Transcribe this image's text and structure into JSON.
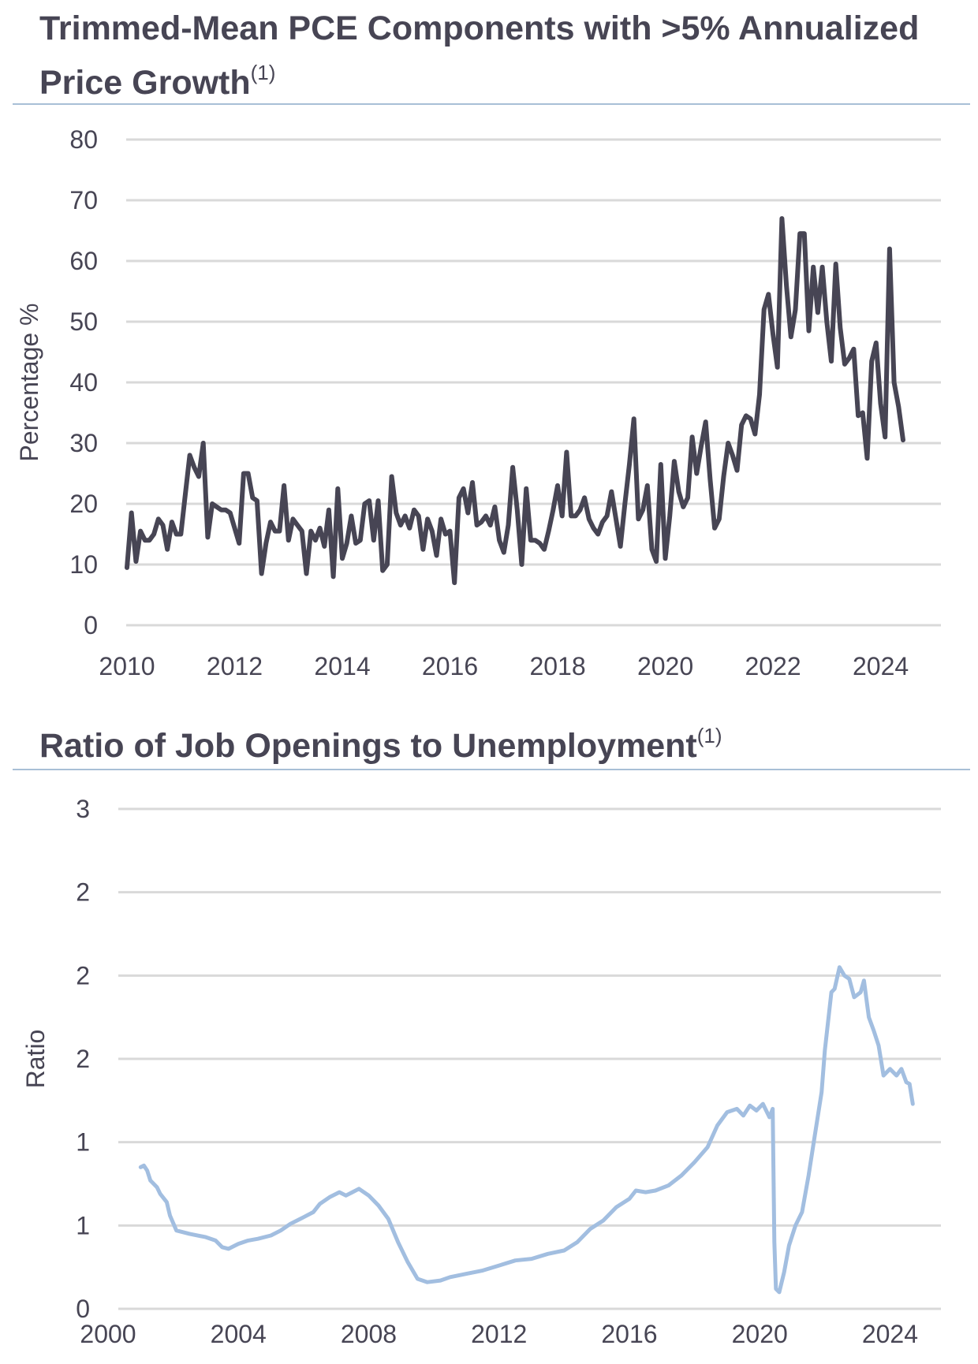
{
  "charts": [
    {
      "title": "Trimmed-Mean PCE Components with >5% Annualized Price Growth",
      "title_note": "(1)"
    },
    {
      "title": "Ratio of Job Openings to Unemployment",
      "title_note": "(1)"
    }
  ],
  "chart_data": [
    {
      "type": "line",
      "ylabel": "Percentage %",
      "ylim": [
        0,
        80
      ],
      "xlim": [
        2010,
        2024.9
      ],
      "y_ticks": [
        0,
        10,
        20,
        30,
        40,
        50,
        60,
        70,
        80
      ],
      "x_ticks": [
        2010,
        2012,
        2014,
        2016,
        2018,
        2020,
        2022,
        2024
      ],
      "grid": true,
      "line_color": "#474554",
      "series": [
        {
          "start": 2010.0,
          "step_years": 0.08333,
          "values": [
            9.5,
            18.5,
            10.5,
            15.5,
            14.0,
            14.0,
            15.0,
            17.5,
            16.5,
            12.5,
            17.0,
            15.0,
            15.0,
            21.5,
            28.0,
            26.0,
            24.5,
            30.0,
            14.5,
            20.0,
            19.5,
            19.0,
            19.0,
            18.5,
            16.0,
            13.5,
            25.0,
            25.0,
            21.0,
            20.5,
            8.5,
            13.5,
            17.0,
            15.5,
            15.5,
            23.0,
            14.0,
            17.5,
            16.5,
            15.5,
            8.5,
            15.5,
            14.0,
            16.0,
            13.0,
            19.0,
            8.0,
            22.5,
            11.0,
            13.5,
            18.0,
            13.5,
            14.0,
            20.0,
            20.5,
            14.0,
            20.5,
            9.0,
            10.0,
            24.5,
            18.5,
            16.5,
            18.0,
            16.0,
            19.0,
            18.0,
            12.5,
            17.5,
            15.5,
            11.5,
            17.5,
            15.0,
            15.5,
            7.0,
            21.0,
            22.5,
            18.5,
            23.5,
            16.5,
            17.0,
            18.0,
            16.5,
            19.5,
            14.0,
            12.0,
            16.5,
            26.0,
            19.0,
            10.0,
            22.5,
            14.0,
            14.0,
            13.5,
            12.5,
            15.5,
            19.0,
            23.0,
            18.0,
            28.5,
            18.0,
            18.0,
            19.0,
            21.0,
            17.5,
            16.0,
            15.0,
            17.0,
            18.0,
            22.0,
            17.5,
            13.0,
            20.0,
            26.5,
            34.0,
            17.5,
            19.0,
            23.0,
            12.5,
            10.5,
            26.5,
            11.0,
            18.0,
            27.0,
            22.0,
            19.5,
            21.0,
            31.0,
            25.0,
            29.5,
            33.5,
            24.0,
            16.0,
            17.5,
            24.5,
            30.0,
            28.0,
            25.5,
            33.0,
            34.5,
            34.0,
            31.5,
            38.0,
            52.0,
            54.5,
            48.0,
            42.5,
            67.0,
            56.0,
            47.5,
            52.0,
            64.5,
            64.5,
            48.5,
            59.0,
            51.5,
            59.0,
            50.0,
            43.5,
            59.5,
            49.0,
            43.0,
            44.0,
            45.5,
            34.5,
            35.0,
            27.5,
            43.5,
            46.5,
            36.5,
            31.0,
            62.0,
            40.0,
            36.0,
            30.5
          ]
        }
      ]
    },
    {
      "type": "line",
      "ylabel": "Ratio",
      "ylim": [
        0,
        3
      ],
      "xlim": [
        2000,
        2025.2
      ],
      "y_ticks": [
        0,
        0.5,
        1,
        1.5,
        2,
        2.5,
        3
      ],
      "y_tick_labels": [
        "0",
        "1",
        "1",
        "2",
        "2",
        "2",
        "3"
      ],
      "x_ticks": [
        2000,
        2004,
        2008,
        2012,
        2016,
        2020,
        2024
      ],
      "grid": true,
      "line_color": "#a2bee0",
      "series": [
        {
          "points": [
            [
              2001.0,
              0.85
            ],
            [
              2001.1,
              0.86
            ],
            [
              2001.2,
              0.83
            ],
            [
              2001.3,
              0.77
            ],
            [
              2001.5,
              0.73
            ],
            [
              2001.6,
              0.69
            ],
            [
              2001.8,
              0.64
            ],
            [
              2001.9,
              0.56
            ],
            [
              2002.1,
              0.47
            ],
            [
              2002.5,
              0.45
            ],
            [
              2003.0,
              0.43
            ],
            [
              2003.3,
              0.41
            ],
            [
              2003.5,
              0.37
            ],
            [
              2003.7,
              0.36
            ],
            [
              2004.0,
              0.39
            ],
            [
              2004.3,
              0.41
            ],
            [
              2004.6,
              0.42
            ],
            [
              2005.0,
              0.44
            ],
            [
              2005.3,
              0.47
            ],
            [
              2005.6,
              0.51
            ],
            [
              2006.0,
              0.55
            ],
            [
              2006.3,
              0.58
            ],
            [
              2006.5,
              0.63
            ],
            [
              2006.8,
              0.67
            ],
            [
              2007.1,
              0.7
            ],
            [
              2007.3,
              0.68
            ],
            [
              2007.5,
              0.7
            ],
            [
              2007.7,
              0.72
            ],
            [
              2008.0,
              0.68
            ],
            [
              2008.3,
              0.62
            ],
            [
              2008.6,
              0.54
            ],
            [
              2008.9,
              0.4
            ],
            [
              2009.2,
              0.28
            ],
            [
              2009.5,
              0.18
            ],
            [
              2009.8,
              0.16
            ],
            [
              2010.2,
              0.17
            ],
            [
              2010.5,
              0.19
            ],
            [
              2011.0,
              0.21
            ],
            [
              2011.5,
              0.23
            ],
            [
              2012.0,
              0.26
            ],
            [
              2012.5,
              0.29
            ],
            [
              2013.0,
              0.3
            ],
            [
              2013.5,
              0.33
            ],
            [
              2014.0,
              0.35
            ],
            [
              2014.4,
              0.4
            ],
            [
              2014.8,
              0.48
            ],
            [
              2015.2,
              0.53
            ],
            [
              2015.6,
              0.61
            ],
            [
              2016.0,
              0.66
            ],
            [
              2016.2,
              0.71
            ],
            [
              2016.5,
              0.7
            ],
            [
              2016.8,
              0.71
            ],
            [
              2017.2,
              0.74
            ],
            [
              2017.6,
              0.8
            ],
            [
              2018.0,
              0.88
            ],
            [
              2018.4,
              0.97
            ],
            [
              2018.7,
              1.1
            ],
            [
              2019.0,
              1.18
            ],
            [
              2019.3,
              1.2
            ],
            [
              2019.5,
              1.16
            ],
            [
              2019.7,
              1.22
            ],
            [
              2019.9,
              1.19
            ],
            [
              2020.1,
              1.23
            ],
            [
              2020.3,
              1.15
            ],
            [
              2020.4,
              1.2
            ],
            [
              2020.45,
              0.4
            ],
            [
              2020.5,
              0.12
            ],
            [
              2020.6,
              0.1
            ],
            [
              2020.75,
              0.22
            ],
            [
              2020.9,
              0.38
            ],
            [
              2021.1,
              0.5
            ],
            [
              2021.3,
              0.58
            ],
            [
              2021.5,
              0.8
            ],
            [
              2021.7,
              1.05
            ],
            [
              2021.9,
              1.3
            ],
            [
              2022.0,
              1.55
            ],
            [
              2022.2,
              1.9
            ],
            [
              2022.3,
              1.92
            ],
            [
              2022.45,
              2.05
            ],
            [
              2022.6,
              2.0
            ],
            [
              2022.75,
              1.98
            ],
            [
              2022.9,
              1.87
            ],
            [
              2023.1,
              1.9
            ],
            [
              2023.2,
              1.97
            ],
            [
              2023.35,
              1.75
            ],
            [
              2023.5,
              1.67
            ],
            [
              2023.65,
              1.58
            ],
            [
              2023.8,
              1.4
            ],
            [
              2024.0,
              1.44
            ],
            [
              2024.2,
              1.4
            ],
            [
              2024.35,
              1.44
            ],
            [
              2024.5,
              1.36
            ],
            [
              2024.6,
              1.35
            ],
            [
              2024.7,
              1.23
            ]
          ]
        }
      ]
    }
  ]
}
